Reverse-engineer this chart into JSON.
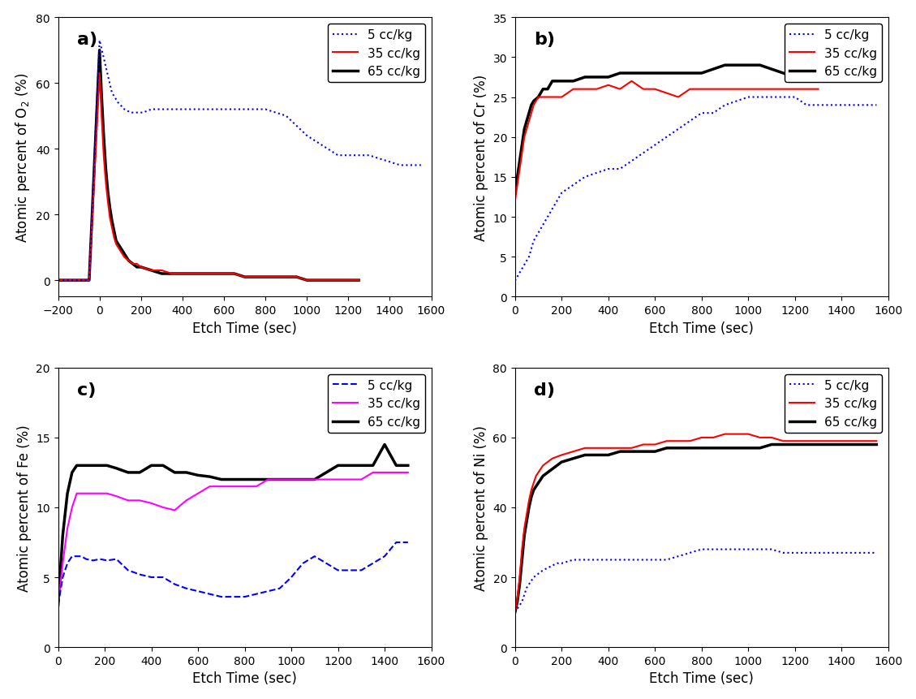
{
  "panel_a": {
    "label": "a)",
    "ylabel": "Atomic percent of O$_2$ (%)",
    "xlabel": "Etch Time (sec)",
    "xlim": [
      -200,
      1600
    ],
    "ylim": [
      -5,
      80
    ],
    "yticks": [
      0,
      20,
      40,
      60,
      80
    ],
    "xticks": [
      -200,
      0,
      200,
      400,
      600,
      800,
      1000,
      1200,
      1400,
      1600
    ],
    "series": {
      "5cc": {
        "x": [
          -200,
          -100,
          -50,
          0,
          30,
          60,
          90,
          120,
          150,
          180,
          210,
          250,
          300,
          350,
          400,
          450,
          500,
          550,
          600,
          650,
          700,
          750,
          800,
          850,
          900,
          950,
          1000,
          1050,
          1100,
          1150,
          1200,
          1250,
          1300,
          1350,
          1400,
          1450,
          1500,
          1550
        ],
        "y": [
          0,
          0,
          0,
          73,
          65,
          57,
          54,
          52,
          51,
          51,
          51,
          52,
          52,
          52,
          52,
          52,
          52,
          52,
          52,
          52,
          52,
          52,
          52,
          51,
          50,
          47,
          44,
          42,
          40,
          38,
          38,
          38,
          38,
          37,
          36,
          35,
          35,
          35
        ],
        "color": "#0000FF",
        "linestyle": "dotted",
        "linewidth": 1.5
      },
      "35cc": {
        "x": [
          -200,
          -100,
          -50,
          0,
          10,
          20,
          30,
          40,
          50,
          60,
          70,
          80,
          90,
          100,
          110,
          120,
          140,
          160,
          180,
          200,
          250,
          300,
          350,
          400,
          450,
          500,
          550,
          600,
          650,
          700,
          750,
          800,
          850,
          900,
          950,
          1000,
          1050,
          1100,
          1150,
          1200,
          1250
        ],
        "y": [
          0,
          0,
          0,
          63,
          50,
          38,
          30,
          24,
          19,
          16,
          13,
          11,
          10,
          9,
          8,
          7,
          6,
          5,
          5,
          4,
          3,
          3,
          2,
          2,
          2,
          2,
          2,
          2,
          2,
          1,
          1,
          1,
          1,
          1,
          1,
          0,
          0,
          0,
          0,
          0,
          0
        ],
        "color": "#FF0000",
        "linestyle": "solid",
        "linewidth": 1.5
      },
      "65cc": {
        "x": [
          -200,
          -100,
          -50,
          0,
          10,
          20,
          30,
          40,
          50,
          60,
          70,
          80,
          90,
          100,
          110,
          120,
          140,
          160,
          180,
          200,
          250,
          300,
          350,
          400,
          450,
          500,
          550,
          600,
          650,
          700,
          750,
          800,
          850,
          900,
          950,
          1000,
          1050,
          1100,
          1150,
          1200,
          1250
        ],
        "y": [
          0,
          0,
          0,
          70,
          56,
          44,
          34,
          27,
          22,
          18,
          15,
          12,
          11,
          10,
          9,
          8,
          6,
          5,
          4,
          4,
          3,
          2,
          2,
          2,
          2,
          2,
          2,
          2,
          2,
          1,
          1,
          1,
          1,
          1,
          1,
          0,
          0,
          0,
          0,
          0,
          0
        ],
        "color": "#000000",
        "linestyle": "solid",
        "linewidth": 2.5
      }
    },
    "legend": {
      "5cc": {
        "color": "#0000FF",
        "linestyle": "dotted",
        "linewidth": 1.5
      },
      "35cc": {
        "color": "#FF0000",
        "linestyle": "solid",
        "linewidth": 1.5
      },
      "65cc": {
        "color": "#000000",
        "linestyle": "solid",
        "linewidth": 2.5
      }
    }
  },
  "panel_b": {
    "label": "b)",
    "ylabel": "Atomic percent of Cr (%)",
    "xlabel": "Etch Time (sec)",
    "xlim": [
      0,
      1600
    ],
    "ylim": [
      0,
      35
    ],
    "yticks": [
      0,
      5,
      10,
      15,
      20,
      25,
      30,
      35
    ],
    "xticks": [
      0,
      200,
      400,
      600,
      800,
      1000,
      1200,
      1400,
      1600
    ],
    "series": {
      "5cc": {
        "x": [
          0,
          10,
          20,
          30,
          40,
          50,
          60,
          70,
          80,
          100,
          120,
          140,
          160,
          200,
          250,
          300,
          350,
          400,
          450,
          500,
          550,
          600,
          650,
          700,
          750,
          800,
          850,
          900,
          950,
          1000,
          1050,
          1100,
          1150,
          1200,
          1250,
          1300,
          1350,
          1400,
          1450,
          1500,
          1550
        ],
        "y": [
          2,
          2.5,
          3,
          3.5,
          4,
          4.5,
          5,
          6,
          7,
          8,
          9,
          10,
          11,
          13,
          14,
          15,
          15.5,
          16,
          16,
          17,
          18,
          19,
          20,
          21,
          22,
          23,
          23,
          24,
          24.5,
          25,
          25,
          25,
          25,
          25,
          24,
          24,
          24,
          24,
          24,
          24,
          24
        ],
        "color": "#0000FF",
        "linestyle": "dotted",
        "linewidth": 1.5
      },
      "35cc": {
        "x": [
          0,
          10,
          20,
          30,
          40,
          50,
          60,
          70,
          80,
          100,
          120,
          140,
          160,
          200,
          250,
          300,
          350,
          400,
          450,
          500,
          550,
          600,
          650,
          700,
          750,
          800,
          850,
          900,
          950,
          1000,
          1050,
          1100,
          1150,
          1200,
          1250,
          1300
        ],
        "y": [
          12,
          14,
          16,
          18,
          20,
          21,
          22,
          23,
          24,
          25,
          25,
          25,
          25,
          25,
          26,
          26,
          26,
          26.5,
          26,
          27,
          26,
          26,
          25.5,
          25,
          26,
          26,
          26,
          26,
          26,
          26,
          26,
          26,
          26,
          26,
          26,
          26
        ],
        "color": "#FF0000",
        "linestyle": "solid",
        "linewidth": 1.5
      },
      "65cc": {
        "x": [
          0,
          10,
          20,
          30,
          40,
          50,
          60,
          70,
          80,
          100,
          120,
          140,
          160,
          200,
          250,
          300,
          350,
          400,
          450,
          500,
          550,
          600,
          650,
          700,
          750,
          800,
          850,
          900,
          950,
          1000,
          1050,
          1100,
          1150,
          1200,
          1250,
          1300
        ],
        "y": [
          13,
          15,
          17,
          19,
          21,
          22,
          23,
          24,
          24.5,
          25,
          26,
          26,
          27,
          27,
          27,
          27.5,
          27.5,
          27.5,
          28,
          28,
          28,
          28,
          28,
          28,
          28,
          28,
          28.5,
          29,
          29,
          29,
          29,
          28.5,
          28,
          27.5,
          27,
          27
        ],
        "color": "#000000",
        "linestyle": "solid",
        "linewidth": 2.5
      }
    },
    "legend": {
      "5cc": {
        "color": "#0000FF",
        "linestyle": "dotted",
        "linewidth": 1.5
      },
      "35cc": {
        "color": "#FF0000",
        "linestyle": "solid",
        "linewidth": 1.5
      },
      "65cc": {
        "color": "#000000",
        "linestyle": "solid",
        "linewidth": 2.5
      }
    }
  },
  "panel_c": {
    "label": "c)",
    "ylabel": "Atomic percent of Fe (%)",
    "xlabel": "Etch Time (sec)",
    "xlim": [
      0,
      1600
    ],
    "ylim": [
      0,
      20
    ],
    "yticks": [
      0,
      5,
      10,
      15,
      20
    ],
    "xticks": [
      0,
      200,
      400,
      600,
      800,
      1000,
      1200,
      1400,
      1600
    ],
    "series": {
      "5cc": {
        "x": [
          0,
          20,
          40,
          60,
          80,
          100,
          120,
          150,
          180,
          210,
          250,
          300,
          350,
          400,
          450,
          500,
          550,
          600,
          650,
          700,
          750,
          800,
          850,
          900,
          950,
          1000,
          1050,
          1100,
          1150,
          1200,
          1250,
          1300,
          1350,
          1400,
          1450,
          1500
        ],
        "y": [
          3,
          5,
          6,
          6.5,
          6.5,
          6.5,
          6.3,
          6.2,
          6.3,
          6.2,
          6.3,
          5.5,
          5.2,
          5.0,
          5.0,
          4.5,
          4.2,
          4.0,
          3.8,
          3.6,
          3.6,
          3.6,
          3.8,
          4.0,
          4.2,
          5.0,
          6.0,
          6.5,
          6.0,
          5.5,
          5.5,
          5.5,
          6.0,
          6.5,
          7.5,
          7.5
        ],
        "color": "#0000FF",
        "linestyle": "dashed",
        "linewidth": 1.5
      },
      "35cc": {
        "x": [
          0,
          20,
          40,
          60,
          80,
          100,
          120,
          150,
          180,
          210,
          250,
          300,
          350,
          400,
          450,
          500,
          550,
          600,
          650,
          700,
          750,
          800,
          850,
          900,
          950,
          1000,
          1050,
          1100,
          1150,
          1200,
          1250,
          1300,
          1350,
          1400,
          1450,
          1500
        ],
        "y": [
          3,
          6,
          8.5,
          10,
          11,
          11,
          11,
          11,
          11,
          11,
          10.8,
          10.5,
          10.5,
          10.3,
          10.0,
          9.8,
          10.5,
          11.0,
          11.5,
          11.5,
          11.5,
          11.5,
          11.5,
          12.0,
          12.0,
          12.0,
          12.0,
          12.0,
          12.0,
          12.0,
          12.0,
          12.0,
          12.5,
          12.5,
          12.5,
          12.5
        ],
        "color": "#FF00FF",
        "linestyle": "solid",
        "linewidth": 1.5
      },
      "65cc": {
        "x": [
          0,
          20,
          40,
          60,
          80,
          100,
          120,
          150,
          180,
          210,
          250,
          300,
          350,
          400,
          450,
          500,
          550,
          600,
          650,
          700,
          750,
          800,
          850,
          900,
          950,
          1000,
          1050,
          1100,
          1150,
          1200,
          1250,
          1300,
          1350,
          1400,
          1450,
          1500
        ],
        "y": [
          3,
          8,
          11,
          12.5,
          13,
          13,
          13,
          13,
          13,
          13,
          12.8,
          12.5,
          12.5,
          13,
          13,
          12.5,
          12.5,
          12.3,
          12.2,
          12.0,
          12.0,
          12.0,
          12.0,
          12.0,
          12.0,
          12.0,
          12.0,
          12.0,
          12.5,
          13.0,
          13.0,
          13.0,
          13.0,
          14.5,
          13.0,
          13.0
        ],
        "color": "#000000",
        "linestyle": "solid",
        "linewidth": 2.5
      }
    },
    "legend": {
      "5cc": {
        "color": "#0000FF",
        "linestyle": "dashed",
        "linewidth": 1.5
      },
      "35cc": {
        "color": "#FF00FF",
        "linestyle": "solid",
        "linewidth": 1.5
      },
      "65cc": {
        "color": "#000000",
        "linestyle": "solid",
        "linewidth": 2.5
      }
    }
  },
  "panel_d": {
    "label": "d)",
    "ylabel": "Atomic percent of Ni (%)",
    "xlabel": "Etch Time (sec)",
    "xlim": [
      0,
      1600
    ],
    "ylim": [
      0,
      80
    ],
    "yticks": [
      0,
      20,
      40,
      60,
      80
    ],
    "xticks": [
      0,
      200,
      400,
      600,
      800,
      1000,
      1200,
      1400,
      1600
    ],
    "series": {
      "5cc": {
        "x": [
          0,
          10,
          20,
          30,
          40,
          50,
          60,
          80,
          100,
          120,
          150,
          180,
          200,
          250,
          300,
          350,
          400,
          450,
          500,
          550,
          600,
          650,
          700,
          750,
          800,
          850,
          900,
          950,
          1000,
          1050,
          1100,
          1150,
          1200,
          1250,
          1300,
          1350,
          1400,
          1450,
          1500,
          1550
        ],
        "y": [
          10,
          11,
          12,
          13,
          15,
          17,
          18,
          20,
          21,
          22,
          23,
          24,
          24,
          25,
          25,
          25,
          25,
          25,
          25,
          25,
          25,
          25,
          26,
          27,
          28,
          28,
          28,
          28,
          28,
          28,
          28,
          27,
          27,
          27,
          27,
          27,
          27,
          27,
          27,
          27
        ],
        "color": "#0000FF",
        "linestyle": "dotted",
        "linewidth": 1.5
      },
      "35cc": {
        "x": [
          0,
          10,
          20,
          30,
          40,
          50,
          60,
          70,
          80,
          90,
          100,
          120,
          140,
          160,
          200,
          250,
          300,
          350,
          400,
          450,
          500,
          550,
          600,
          650,
          700,
          750,
          800,
          850,
          900,
          950,
          1000,
          1050,
          1100,
          1150,
          1200,
          1250,
          1300,
          1350,
          1400,
          1450,
          1500,
          1550
        ],
        "y": [
          10,
          14,
          20,
          28,
          34,
          38,
          42,
          45,
          47,
          49,
          50,
          52,
          53,
          54,
          55,
          56,
          57,
          57,
          57,
          57,
          57,
          58,
          58,
          59,
          59,
          59,
          60,
          60,
          61,
          61,
          61,
          60,
          60,
          59,
          59,
          59,
          59,
          59,
          59,
          59,
          59,
          59
        ],
        "color": "#FF0000",
        "linestyle": "solid",
        "linewidth": 1.5
      },
      "65cc": {
        "x": [
          0,
          10,
          20,
          30,
          40,
          50,
          60,
          70,
          80,
          90,
          100,
          120,
          140,
          160,
          200,
          250,
          300,
          350,
          400,
          450,
          500,
          550,
          600,
          650,
          700,
          750,
          800,
          850,
          900,
          950,
          1000,
          1050,
          1100,
          1150,
          1200,
          1250,
          1300,
          1350,
          1400,
          1450,
          1500,
          1550
        ],
        "y": [
          10,
          13,
          18,
          25,
          32,
          36,
          40,
          43,
          45,
          46,
          47,
          49,
          50,
          51,
          53,
          54,
          55,
          55,
          55,
          56,
          56,
          56,
          56,
          57,
          57,
          57,
          57,
          57,
          57,
          57,
          57,
          57,
          58,
          58,
          58,
          58,
          58,
          58,
          58,
          58,
          58,
          58
        ],
        "color": "#000000",
        "linestyle": "solid",
        "linewidth": 2.5
      }
    },
    "legend": {
      "5cc": {
        "color": "#0000FF",
        "linestyle": "dotted",
        "linewidth": 1.5
      },
      "35cc": {
        "color": "#FF0000",
        "linestyle": "solid",
        "linewidth": 1.5
      },
      "65cc": {
        "color": "#000000",
        "linestyle": "solid",
        "linewidth": 2.5
      }
    }
  },
  "font_size": 11,
  "label_font_size": 12,
  "tick_font_size": 10,
  "panel_label_fontsize": 16
}
